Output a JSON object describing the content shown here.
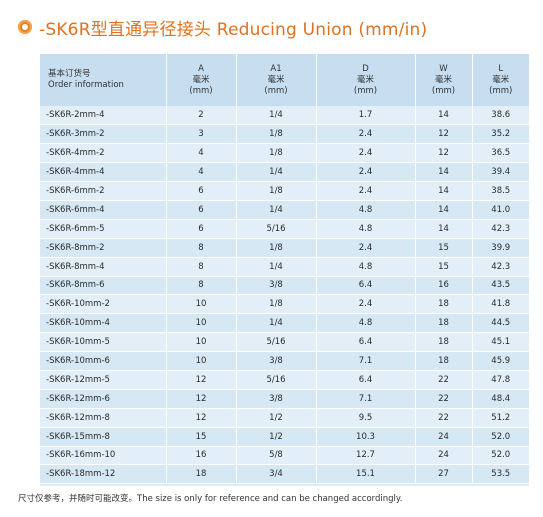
{
  "title": "-SK6R型直通异径接头 Reducing Union (mm/in)",
  "columns": [
    {
      "cn": "基本订货号",
      "en": "Order information",
      "unit": ""
    },
    {
      "cn": "A",
      "en": "毫米",
      "unit": "(mm)"
    },
    {
      "cn": "A1",
      "en": "毫米",
      "unit": "(mm)"
    },
    {
      "cn": "D",
      "en": "毫米",
      "unit": "(mm)"
    },
    {
      "cn": "W",
      "en": "毫米",
      "unit": "(mm)"
    },
    {
      "cn": "L",
      "en": "毫米",
      "unit": "(mm)"
    }
  ],
  "rows": [
    [
      "-SK6R-2mm-4",
      "2",
      "1/4",
      "1.7",
      "14",
      "38.6"
    ],
    [
      "-SK6R-3mm-2",
      "3",
      "1/8",
      "2.4",
      "12",
      "35.2"
    ],
    [
      "-SK6R-4mm-2",
      "4",
      "1/8",
      "2.4",
      "12",
      "36.5"
    ],
    [
      "-SK6R-4mm-4",
      "4",
      "1/4",
      "2.4",
      "14",
      "39.4"
    ],
    [
      "-SK6R-6mm-2",
      "6",
      "1/8",
      "2.4",
      "14",
      "38.5"
    ],
    [
      "-SK6R-6mm-4",
      "6",
      "1/4",
      "4.8",
      "14",
      "41.0"
    ],
    [
      "-SK6R-6mm-5",
      "6",
      "5/16",
      "4.8",
      "14",
      "42.3"
    ],
    [
      "-SK6R-8mm-2",
      "8",
      "1/8",
      "2.4",
      "15",
      "39.9"
    ],
    [
      "-SK6R-8mm-4",
      "8",
      "1/4",
      "4.8",
      "15",
      "42.3"
    ],
    [
      "-SK6R-8mm-6",
      "8",
      "3/8",
      "6.4",
      "16",
      "43.5"
    ],
    [
      "-SK6R-10mm-2",
      "10",
      "1/8",
      "2.4",
      "18",
      "41.8"
    ],
    [
      "-SK6R-10mm-4",
      "10",
      "1/4",
      "4.8",
      "18",
      "44.5"
    ],
    [
      "-SK6R-10mm-5",
      "10",
      "5/16",
      "6.4",
      "18",
      "45.1"
    ],
    [
      "-SK6R-10mm-6",
      "10",
      "3/8",
      "7.1",
      "18",
      "45.9"
    ],
    [
      "-SK6R-12mm-5",
      "12",
      "5/16",
      "6.4",
      "22",
      "47.8"
    ],
    [
      "-SK6R-12mm-6",
      "12",
      "3/8",
      "7.1",
      "22",
      "48.4"
    ],
    [
      "-SK6R-12mm-8",
      "12",
      "1/2",
      "9.5",
      "22",
      "51.2"
    ],
    [
      "-SK6R-15mm-8",
      "15",
      "1/2",
      "10.3",
      "24",
      "52.0"
    ],
    [
      "-SK6R-16mm-10",
      "16",
      "5/8",
      "12.7",
      "24",
      "52.0"
    ],
    [
      "-SK6R-18mm-12",
      "18",
      "3/4",
      "15.1",
      "27",
      "53.5"
    ]
  ],
  "footnote": "尺寸仅参考，并随时可能改变。The size is only for reference and can be changed accordingly.",
  "colors": {
    "accent": "#e2711d",
    "header_bg": "#c6def0",
    "row_bg": "#dcecf6"
  }
}
